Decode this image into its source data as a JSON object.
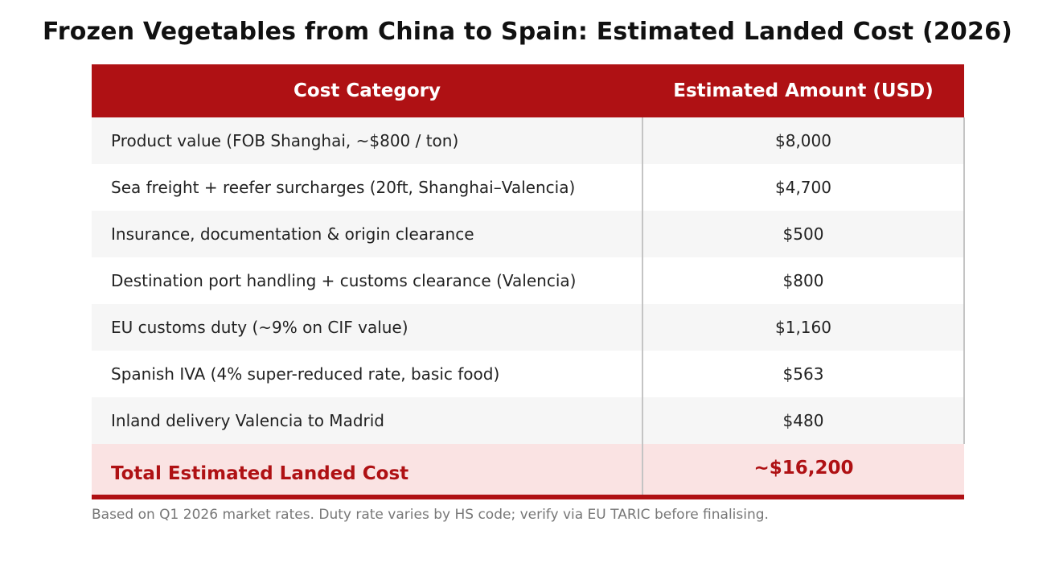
{
  "title": "Frozen Vegetables from China to Spain: Estimated Landed Cost (2026)",
  "colors": {
    "header_bg": "#af1114",
    "total_bg": "#fae3e3",
    "total_text": "#af1114"
  },
  "table": {
    "headers": [
      "Cost Category",
      "Estimated Amount (USD)"
    ],
    "rows": [
      {
        "category": "Product value (FOB Shanghai, ~$800 / ton)",
        "amount": "$8,000"
      },
      {
        "category": "Sea freight + reefer surcharges (20ft, Shanghai–Valencia)",
        "amount": "$4,700"
      },
      {
        "category": "Insurance, documentation & origin clearance",
        "amount": "$500"
      },
      {
        "category": "Destination port handling + customs clearance (Valencia)",
        "amount": "$800"
      },
      {
        "category": "EU customs duty (~9% on CIF value)",
        "amount": "$1,160"
      },
      {
        "category": "Spanish IVA (4% super-reduced rate, basic food)",
        "amount": "$563"
      },
      {
        "category": "Inland delivery Valencia to Madrid",
        "amount": "$480"
      }
    ],
    "total": {
      "label": "Total Estimated Landed Cost",
      "amount": "~$16,200"
    }
  },
  "footnote": "Based on Q1 2026 market rates. Duty rate varies by HS code; verify via EU TARIC before finalising."
}
